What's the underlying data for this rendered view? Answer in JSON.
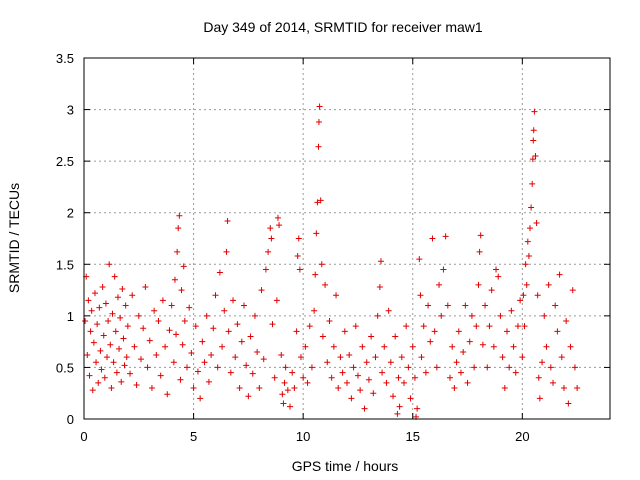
{
  "chart_data": {
    "type": "scatter",
    "title": "Day 349 of 2014, SRMTID for receiver maw1",
    "xlabel": "GPS time / hours",
    "ylabel": "SRMTID / TECUs",
    "xlim": [
      0,
      24
    ],
    "ylim": [
      0,
      3.5
    ],
    "xticks": [
      0,
      5,
      10,
      15,
      20
    ],
    "xtick_labels": [
      "0",
      "5",
      "10",
      "15",
      "20"
    ],
    "yticks": [
      0,
      0.5,
      1,
      1.5,
      2,
      2.5,
      3,
      3.5
    ],
    "ytick_labels": [
      "0",
      "0.5",
      "1",
      "1.5",
      "2",
      "2.5",
      "3",
      "3.5"
    ],
    "grid": true,
    "marker": "plus",
    "color": "#e00000",
    "series": [
      {
        "name": "maw1",
        "points": [
          [
            0.05,
            0.95
          ],
          [
            0.1,
            1.38
          ],
          [
            0.15,
            0.62
          ],
          [
            0.2,
            1.15
          ],
          [
            0.25,
            0.42
          ],
          [
            0.3,
            0.85
          ],
          [
            0.35,
            1.05
          ],
          [
            0.4,
            0.28
          ],
          [
            0.45,
            0.74
          ],
          [
            0.5,
            1.22
          ],
          [
            0.55,
            0.55
          ],
          [
            0.6,
            0.92
          ],
          [
            0.65,
            0.35
          ],
          [
            0.7,
            1.08
          ],
          [
            0.75,
            0.66
          ],
          [
            0.8,
            0.48
          ],
          [
            0.85,
            1.28
          ],
          [
            0.9,
            0.81
          ],
          [
            0.95,
            0.4
          ],
          [
            1.0,
            1.12
          ],
          [
            1.05,
            0.6
          ],
          [
            1.1,
            0.95
          ],
          [
            1.15,
            1.5
          ],
          [
            1.2,
            0.72
          ],
          [
            1.25,
            0.3
          ],
          [
            1.3,
            1.02
          ],
          [
            1.35,
            0.55
          ],
          [
            1.4,
            1.38
          ],
          [
            1.45,
            0.85
          ],
          [
            1.5,
            0.45
          ],
          [
            1.55,
            1.18
          ],
          [
            1.6,
            0.68
          ],
          [
            1.65,
            0.98
          ],
          [
            1.7,
            0.36
          ],
          [
            1.75,
            1.26
          ],
          [
            1.8,
            0.78
          ],
          [
            1.85,
            0.52
          ],
          [
            1.9,
            1.1
          ],
          [
            1.95,
            0.6
          ],
          [
            2.0,
            0.9
          ],
          [
            2.1,
            0.44
          ],
          [
            2.2,
            1.2
          ],
          [
            2.3,
            0.7
          ],
          [
            2.4,
            0.33
          ],
          [
            2.5,
            1.0
          ],
          [
            2.6,
            0.58
          ],
          [
            2.7,
            0.88
          ],
          [
            2.8,
            1.28
          ],
          [
            2.9,
            0.5
          ],
          [
            3.0,
            0.76
          ],
          [
            3.1,
            0.3
          ],
          [
            3.2,
            1.05
          ],
          [
            3.3,
            0.62
          ],
          [
            3.4,
            0.95
          ],
          [
            3.5,
            0.42
          ],
          [
            3.6,
            1.15
          ],
          [
            3.7,
            0.7
          ],
          [
            3.8,
            0.24
          ],
          [
            3.9,
            0.86
          ],
          [
            4.0,
            1.1
          ],
          [
            4.1,
            0.55
          ],
          [
            4.15,
            1.35
          ],
          [
            4.2,
            0.82
          ],
          [
            4.25,
            1.62
          ],
          [
            4.3,
            1.85
          ],
          [
            4.35,
            1.97
          ],
          [
            4.4,
            0.38
          ],
          [
            4.45,
            1.25
          ],
          [
            4.5,
            0.72
          ],
          [
            4.55,
            1.48
          ],
          [
            4.6,
            0.95
          ],
          [
            4.7,
            0.5
          ],
          [
            4.8,
            1.08
          ],
          [
            4.9,
            0.64
          ],
          [
            5.0,
            0.3
          ],
          [
            5.1,
            0.9
          ],
          [
            5.2,
            0.46
          ],
          [
            5.3,
            0.2
          ],
          [
            5.4,
            0.75
          ],
          [
            5.5,
            0.55
          ],
          [
            5.6,
            1.0
          ],
          [
            5.7,
            0.36
          ],
          [
            5.8,
            0.62
          ],
          [
            5.9,
            0.88
          ],
          [
            6.0,
            1.2
          ],
          [
            6.1,
            0.5
          ],
          [
            6.2,
            1.42
          ],
          [
            6.3,
            0.7
          ],
          [
            6.4,
            1.05
          ],
          [
            6.5,
            1.62
          ],
          [
            6.55,
            1.92
          ],
          [
            6.6,
            0.85
          ],
          [
            6.7,
            0.45
          ],
          [
            6.8,
            1.15
          ],
          [
            6.9,
            0.6
          ],
          [
            7.0,
            0.92
          ],
          [
            7.1,
            0.3
          ],
          [
            7.2,
            0.75
          ],
          [
            7.3,
            1.1
          ],
          [
            7.4,
            0.52
          ],
          [
            7.5,
            0.22
          ],
          [
            7.6,
            0.8
          ],
          [
            7.7,
            0.44
          ],
          [
            7.8,
            1.0
          ],
          [
            7.9,
            0.65
          ],
          [
            8.0,
            0.3
          ],
          [
            8.1,
            1.25
          ],
          [
            8.2,
            0.58
          ],
          [
            8.3,
            1.45
          ],
          [
            8.4,
            1.62
          ],
          [
            8.5,
            1.85
          ],
          [
            8.55,
            1.75
          ],
          [
            8.6,
            0.92
          ],
          [
            8.7,
            0.4
          ],
          [
            8.8,
            1.15
          ],
          [
            8.85,
            1.95
          ],
          [
            8.9,
            1.88
          ],
          [
            9.0,
            0.62
          ],
          [
            9.05,
            0.24
          ],
          [
            9.1,
            0.15
          ],
          [
            9.15,
            0.35
          ],
          [
            9.2,
            0.5
          ],
          [
            9.3,
            0.28
          ],
          [
            9.4,
            0.12
          ],
          [
            9.5,
            0.45
          ],
          [
            9.6,
            0.3
          ],
          [
            9.7,
            0.85
          ],
          [
            9.75,
            1.58
          ],
          [
            9.8,
            1.75
          ],
          [
            9.85,
            1.45
          ],
          [
            9.9,
            0.6
          ],
          [
            10.0,
            0.4
          ],
          [
            10.1,
            0.7
          ],
          [
            10.2,
            0.35
          ],
          [
            10.3,
            0.9
          ],
          [
            10.4,
            0.5
          ],
          [
            10.5,
            1.05
          ],
          [
            10.55,
            1.4
          ],
          [
            10.6,
            1.8
          ],
          [
            10.65,
            2.1
          ],
          [
            10.7,
            2.64
          ],
          [
            10.72,
            2.88
          ],
          [
            10.75,
            3.03
          ],
          [
            10.8,
            2.12
          ],
          [
            10.85,
            1.5
          ],
          [
            10.9,
            0.8
          ],
          [
            11.0,
            1.3
          ],
          [
            11.1,
            0.55
          ],
          [
            11.2,
            0.95
          ],
          [
            11.3,
            0.4
          ],
          [
            11.4,
            0.7
          ],
          [
            11.5,
            1.2
          ],
          [
            11.6,
            0.3
          ],
          [
            11.7,
            0.6
          ],
          [
            11.8,
            0.45
          ],
          [
            11.9,
            0.85
          ],
          [
            12.0,
            0.35
          ],
          [
            12.1,
            0.62
          ],
          [
            12.2,
            0.2
          ],
          [
            12.3,
            0.5
          ],
          [
            12.4,
            0.9
          ],
          [
            12.5,
            0.42
          ],
          [
            12.6,
            0.28
          ],
          [
            12.7,
            0.7
          ],
          [
            12.8,
            0.1
          ],
          [
            12.9,
            0.55
          ],
          [
            13.0,
            0.38
          ],
          [
            13.1,
            0.8
          ],
          [
            13.2,
            0.25
          ],
          [
            13.3,
            0.6
          ],
          [
            13.4,
            1.0
          ],
          [
            13.5,
            1.28
          ],
          [
            13.55,
            1.53
          ],
          [
            13.6,
            0.45
          ],
          [
            13.7,
            0.7
          ],
          [
            13.8,
            0.35
          ],
          [
            13.9,
            1.05
          ],
          [
            14.0,
            0.55
          ],
          [
            14.1,
            0.22
          ],
          [
            14.2,
            0.8
          ],
          [
            14.3,
            0.05
          ],
          [
            14.35,
            0.4
          ],
          [
            14.4,
            0.12
          ],
          [
            14.5,
            0.6
          ],
          [
            14.6,
            0.35
          ],
          [
            14.7,
            0.9
          ],
          [
            14.8,
            0.5
          ],
          [
            14.9,
            0.2
          ],
          [
            15.0,
            0.7
          ],
          [
            15.1,
            0.4
          ],
          [
            15.15,
            0.02
          ],
          [
            15.2,
            0.1
          ],
          [
            15.3,
            1.55
          ],
          [
            15.35,
            1.2
          ],
          [
            15.4,
            0.6
          ],
          [
            15.5,
            0.9
          ],
          [
            15.6,
            0.45
          ],
          [
            15.7,
            1.1
          ],
          [
            15.8,
            0.75
          ],
          [
            15.9,
            1.75
          ],
          [
            16.0,
            0.85
          ],
          [
            16.1,
            0.5
          ],
          [
            16.2,
            1.3
          ],
          [
            16.3,
            1.0
          ],
          [
            16.4,
            1.45
          ],
          [
            16.5,
            1.77
          ],
          [
            16.6,
            1.1
          ],
          [
            16.7,
            0.4
          ],
          [
            16.8,
            0.7
          ],
          [
            16.9,
            0.3
          ],
          [
            17.0,
            0.55
          ],
          [
            17.1,
            0.85
          ],
          [
            17.2,
            0.45
          ],
          [
            17.3,
            0.65
          ],
          [
            17.4,
            1.1
          ],
          [
            17.5,
            0.35
          ],
          [
            17.6,
            0.75
          ],
          [
            17.7,
            1.0
          ],
          [
            17.8,
            0.5
          ],
          [
            17.9,
            0.9
          ],
          [
            18.0,
            1.3
          ],
          [
            18.05,
            1.62
          ],
          [
            18.1,
            1.78
          ],
          [
            18.2,
            0.72
          ],
          [
            18.3,
            1.1
          ],
          [
            18.4,
            0.5
          ],
          [
            18.5,
            0.9
          ],
          [
            18.6,
            1.25
          ],
          [
            18.7,
            0.7
          ],
          [
            18.8,
            1.45
          ],
          [
            18.9,
            1.38
          ],
          [
            19.0,
            1.0
          ],
          [
            19.1,
            0.6
          ],
          [
            19.2,
            0.3
          ],
          [
            19.3,
            0.85
          ],
          [
            19.4,
            0.5
          ],
          [
            19.5,
            1.05
          ],
          [
            19.6,
            0.7
          ],
          [
            19.7,
            0.45
          ],
          [
            19.8,
            0.9
          ],
          [
            19.9,
            1.15
          ],
          [
            20.0,
            0.6
          ],
          [
            20.05,
            1.2
          ],
          [
            20.1,
            0.9
          ],
          [
            20.15,
            1.5
          ],
          [
            20.2,
            1.3
          ],
          [
            20.25,
            1.72
          ],
          [
            20.3,
            1.58
          ],
          [
            20.35,
            1.85
          ],
          [
            20.4,
            2.05
          ],
          [
            20.45,
            2.28
          ],
          [
            20.48,
            2.52
          ],
          [
            20.5,
            2.7
          ],
          [
            20.52,
            2.8
          ],
          [
            20.55,
            2.98
          ],
          [
            20.6,
            2.55
          ],
          [
            20.65,
            1.9
          ],
          [
            20.7,
            1.2
          ],
          [
            20.75,
            0.4
          ],
          [
            20.8,
            0.2
          ],
          [
            20.9,
            0.55
          ],
          [
            21.0,
            1.0
          ],
          [
            21.1,
            0.7
          ],
          [
            21.2,
            1.3
          ],
          [
            21.3,
            0.5
          ],
          [
            21.4,
            0.35
          ],
          [
            21.5,
            1.1
          ],
          [
            21.6,
            0.85
          ],
          [
            21.7,
            1.4
          ],
          [
            21.8,
            0.6
          ],
          [
            21.9,
            0.3
          ],
          [
            22.0,
            0.95
          ],
          [
            22.1,
            0.15
          ],
          [
            22.2,
            0.7
          ],
          [
            22.3,
            1.25
          ],
          [
            22.4,
            0.5
          ],
          [
            22.5,
            0.3
          ]
        ]
      }
    ]
  }
}
